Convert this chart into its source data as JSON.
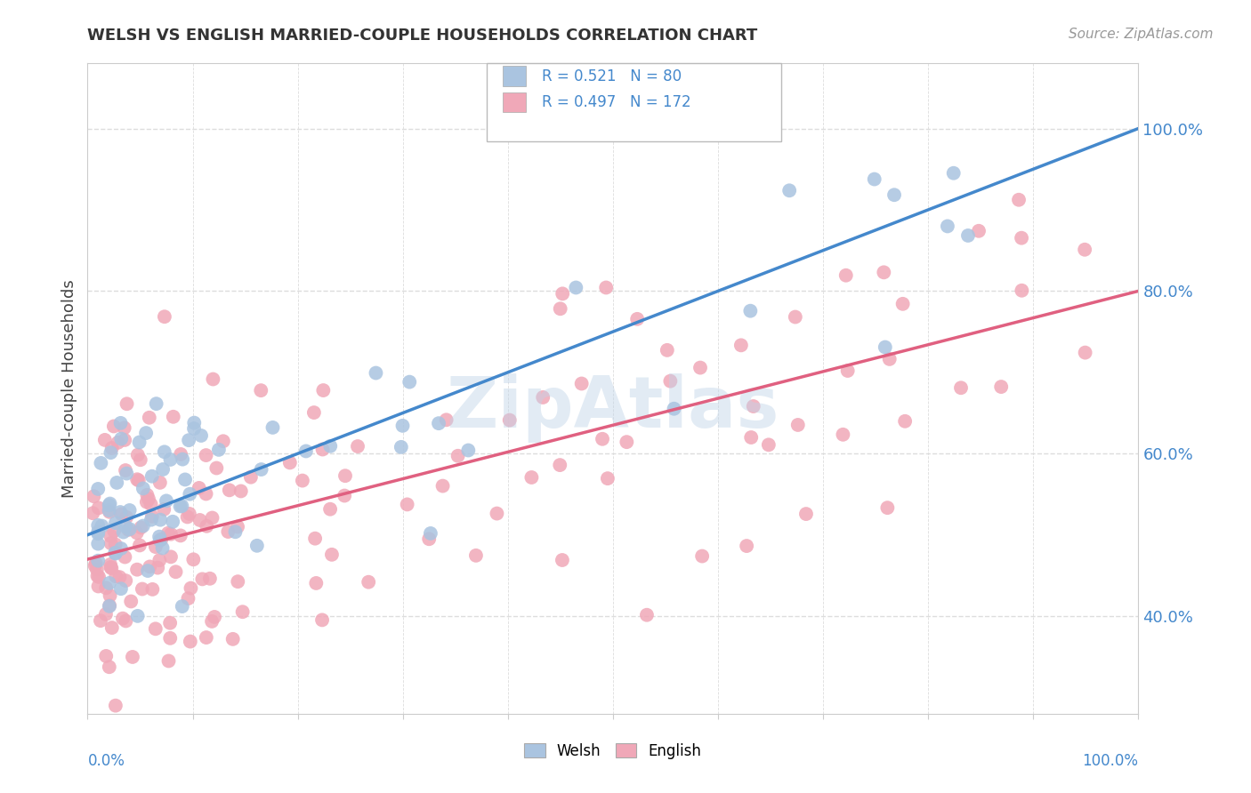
{
  "title": "WELSH VS ENGLISH MARRIED-COUPLE HOUSEHOLDS CORRELATION CHART",
  "source": "Source: ZipAtlas.com",
  "ylabel": "Married-couple Households",
  "welsh_R": 0.521,
  "welsh_N": 80,
  "english_R": 0.497,
  "english_N": 172,
  "welsh_color": "#aac4e0",
  "english_color": "#f0a8b8",
  "welsh_line_color": "#4488cc",
  "english_line_color": "#e06080",
  "title_color": "#333333",
  "source_color": "#999999",
  "watermark_color": "#c0d4e8",
  "background_color": "#ffffff",
  "grid_color": "#dddddd",
  "axis_label_color": "#4488cc",
  "welsh_line_start_y": 0.5,
  "welsh_line_end_y": 1.0,
  "english_line_start_y": 0.47,
  "english_line_end_y": 0.8,
  "xlim": [
    0.0,
    1.0
  ],
  "ylim": [
    0.28,
    1.08
  ],
  "yticks": [
    0.4,
    0.6,
    0.8,
    1.0
  ],
  "ytick_labels": [
    "40.0%",
    "60.0%",
    "80.0%",
    "100.0%"
  ]
}
